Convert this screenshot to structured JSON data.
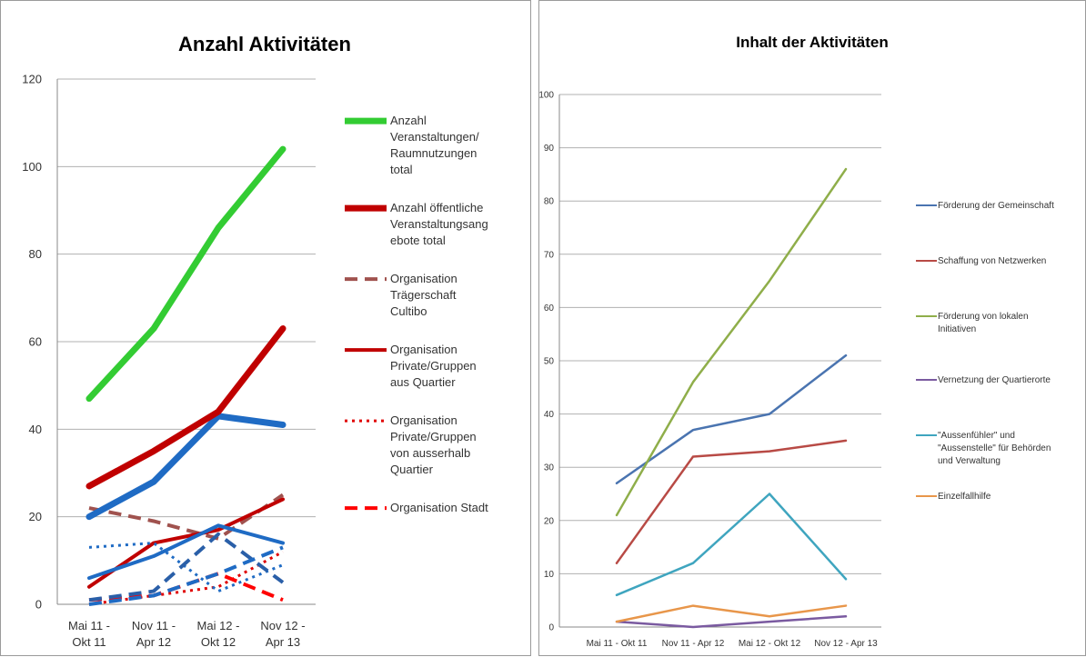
{
  "chart_data": [
    {
      "type": "line",
      "title": "Anzahl Aktivitäten",
      "categories": [
        [
          "Mai 11 -",
          "Okt 11"
        ],
        [
          "Nov 11 -",
          "Apr 12"
        ],
        [
          "Mai 12 -",
          "Okt 12"
        ],
        [
          "Nov 12 -",
          "Apr 13"
        ]
      ],
      "ylim": [
        0,
        120
      ],
      "yticks": [
        0,
        20,
        40,
        60,
        80,
        100,
        120
      ],
      "grid": true,
      "legend_position": "right",
      "series": [
        {
          "legend": [
            "Anzahl",
            "Veranstaltungen/",
            "Raumnutzungen",
            "total"
          ],
          "color": "#33cc33",
          "style": "thick-solid",
          "values": [
            47,
            63,
            86,
            104
          ]
        },
        {
          "legend": [
            "Anzahl öffentliche",
            "Veranstaltungsang",
            "ebote total"
          ],
          "color": "#c00000",
          "style": "thick-solid",
          "values": [
            27,
            35,
            44,
            63
          ]
        },
        {
          "legend": [
            "Organisation",
            "Trägerschaft",
            "Cultibo"
          ],
          "color": "#a0524e",
          "style": "dashed",
          "values": [
            22,
            19,
            15,
            25
          ]
        },
        {
          "legend": [
            "Organisation",
            "Private/Gruppen",
            "aus Quartier"
          ],
          "color": "#c00000",
          "style": "solid",
          "values": [
            4,
            14,
            17,
            24
          ]
        },
        {
          "legend": [
            "Organisation",
            "Private/Gruppen",
            "von ausserhalb",
            "Quartier"
          ],
          "color": "#e00000",
          "style": "dotted",
          "values": [
            0,
            2,
            4,
            12
          ]
        },
        {
          "legend": [
            "Organisation Stadt"
          ],
          "color": "#ff0000",
          "style": "dashed",
          "values": [
            1,
            2,
            7,
            1
          ]
        },
        {
          "legend": null,
          "color": "#1f6bc4",
          "style": "thick-solid",
          "values": [
            20,
            28,
            43,
            41
          ]
        },
        {
          "legend": null,
          "color": "#1f6bc4",
          "style": "solid",
          "values": [
            6,
            11,
            18,
            14
          ]
        },
        {
          "legend": null,
          "color": "#1f6bc4",
          "style": "dotted",
          "values": [
            13,
            14,
            3,
            9
          ]
        },
        {
          "legend": null,
          "color": "#2a5fa8",
          "style": "dashed",
          "values": [
            1,
            3,
            16,
            5
          ]
        },
        {
          "legend": null,
          "color": "#1f6bc4",
          "style": "dashed",
          "values": [
            0,
            2,
            7,
            13
          ]
        }
      ]
    },
    {
      "type": "line",
      "title": "Inhalt der Aktivitäten",
      "categories": [
        "Mai 11 - Okt 11",
        "Nov 11 - Apr 12",
        "Mai 12 - Okt 12",
        "Nov 12 - Apr 13"
      ],
      "ylim": [
        0,
        100
      ],
      "yticks": [
        0,
        10,
        20,
        30,
        40,
        50,
        60,
        70,
        80,
        90,
        100
      ],
      "grid": true,
      "legend_position": "right",
      "series": [
        {
          "legend": [
            "Förderung der Gemeinschaft"
          ],
          "color": "#4a74b0",
          "values": [
            27,
            37,
            40,
            51
          ]
        },
        {
          "legend": [
            "Schaffung von Netzwerken"
          ],
          "color": "#b84a45",
          "values": [
            12,
            32,
            33,
            35
          ]
        },
        {
          "legend": [
            "Förderung von lokalen",
            "Initiativen"
          ],
          "color": "#8fae4a",
          "values": [
            21,
            46,
            65,
            86
          ]
        },
        {
          "legend": [
            "Vernetzung der Quartierorte"
          ],
          "color": "#7a5aa0",
          "values": [
            1,
            0,
            1,
            2
          ]
        },
        {
          "legend": [
            "\"Aussenfühler\" und",
            "\"Aussenstelle\" für Behörden",
            "und Verwaltung"
          ],
          "color": "#3fa5bf",
          "values": [
            6,
            12,
            25,
            9
          ]
        },
        {
          "legend": [
            "Einzelfallhilfe"
          ],
          "color": "#e8964a",
          "values": [
            1,
            4,
            2,
            4
          ]
        }
      ]
    }
  ]
}
